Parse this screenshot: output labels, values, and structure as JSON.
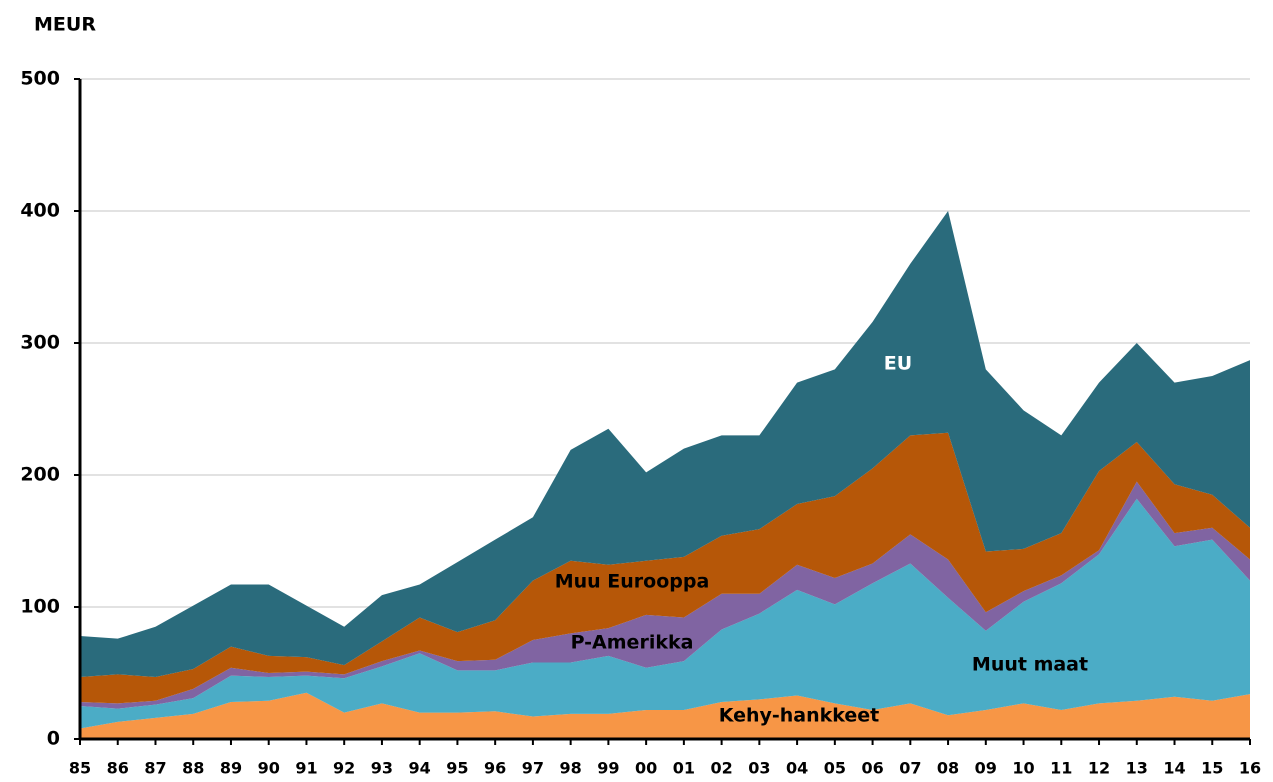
{
  "chart_data": {
    "type": "stacked-area",
    "y_label": "MEUR",
    "categories": [
      "85",
      "86",
      "87",
      "88",
      "89",
      "90",
      "91",
      "92",
      "93",
      "94",
      "95",
      "96",
      "97",
      "98",
      "99",
      "00",
      "01",
      "02",
      "03",
      "04",
      "05",
      "06",
      "07",
      "08",
      "09",
      "10",
      "11",
      "12",
      "13",
      "14",
      "15",
      "16"
    ],
    "ylim": [
      0,
      500
    ],
    "yticks": [
      0,
      100,
      200,
      300,
      400,
      500
    ],
    "grid": true,
    "series": [
      {
        "name": "Kehy-hankkeet",
        "color": "#f79646",
        "values": [
          8,
          13,
          16,
          19,
          28,
          29,
          35,
          20,
          27,
          20,
          20,
          21,
          17,
          19,
          19,
          22,
          22,
          28,
          30,
          33,
          27,
          22,
          27,
          18,
          22,
          27,
          22,
          27,
          29,
          32,
          29,
          34
        ]
      },
      {
        "name": "Muut maat",
        "color": "#4bacc6",
        "values": [
          17,
          10,
          10,
          12,
          20,
          18,
          13,
          26,
          28,
          45,
          32,
          31,
          41,
          39,
          44,
          32,
          37,
          55,
          65,
          80,
          75,
          96,
          106,
          89,
          60,
          77,
          96,
          113,
          153,
          114,
          122,
          86
        ]
      },
      {
        "name": "P-Amerikka",
        "color": "#8064a2",
        "values": [
          3,
          4,
          3,
          7,
          6,
          3,
          3,
          3,
          4,
          2,
          7,
          8,
          17,
          22,
          21,
          40,
          33,
          27,
          15,
          19,
          20,
          15,
          22,
          29,
          14,
          8,
          6,
          3,
          13,
          10,
          9,
          16
        ]
      },
      {
        "name": "Muu Eurooppa",
        "color": "#b65708",
        "values": [
          19,
          22,
          18,
          15,
          16,
          13,
          11,
          7,
          15,
          25,
          22,
          30,
          45,
          55,
          48,
          41,
          46,
          44,
          49,
          46,
          62,
          72,
          75,
          96,
          46,
          32,
          32,
          60,
          30,
          37,
          25,
          24
        ]
      },
      {
        "name": "EU",
        "color": "#2a6b7c",
        "values": [
          31,
          27,
          38,
          48,
          47,
          54,
          39,
          29,
          35,
          25,
          53,
          61,
          48,
          84,
          103,
          67,
          82,
          76,
          71,
          92,
          96,
          111,
          130,
          168,
          138,
          105,
          74,
          67,
          75,
          77,
          90,
          127
        ]
      }
    ]
  }
}
